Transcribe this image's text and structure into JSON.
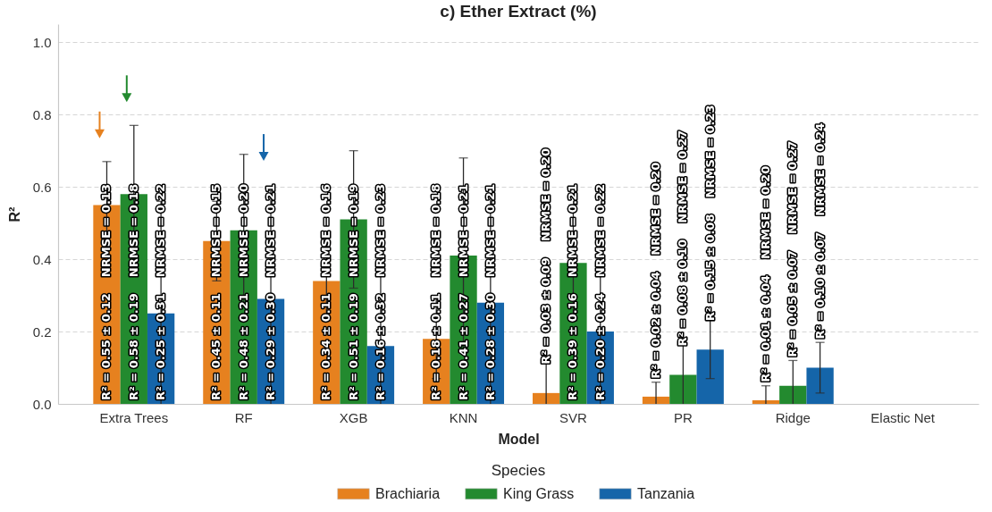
{
  "chart_data": {
    "type": "bar",
    "title": "c) Ether Extract (%)",
    "xlabel": "Model",
    "ylabel": "R²",
    "legend_title": "Species",
    "categories": [
      "Extra Trees",
      "RF",
      "XGB",
      "KNN",
      "SVR",
      "PR",
      "Ridge",
      "Elastic Net"
    ],
    "series": [
      {
        "name": "Brachiaria",
        "color": "#e6811f",
        "values": [
          0.55,
          0.45,
          0.34,
          0.18,
          0.03,
          0.02,
          0.01,
          0
        ],
        "errors": [
          0.12,
          0.11,
          0.11,
          0.11,
          [
            0,
            0.12
          ],
          [
            0,
            0.06
          ],
          [
            0,
            0.05
          ],
          null
        ],
        "value_labels": [
          "R² = 0.55 ± 0.12    NRMSE = 0.13",
          "R² = 0.45 ± 0.11    NRMSE = 0.15",
          "R² = 0.34 ± 0.11    NRMSE = 0.16",
          "R² = 0.18 ± 0.11    NRMSE = 0.18",
          "R² = 0.03 ± 0.09    NRMSE = 0.20",
          "R² = 0.02 ± 0.04    NRMSE = 0.20",
          "R² = 0.01 ± 0.04    NRMSE = 0.20",
          null
        ]
      },
      {
        "name": "King Grass",
        "color": "#238a2f",
        "values": [
          0.58,
          0.48,
          0.51,
          0.41,
          0.39,
          0.08,
          0.05,
          0
        ],
        "errors": [
          0.19,
          0.21,
          0.19,
          0.27,
          0.16,
          [
            0,
            0.18
          ],
          [
            0,
            0.12
          ],
          null
        ],
        "value_labels": [
          "R² = 0.58 ± 0.19    NRMSE = 0.18",
          "R² = 0.48 ± 0.21    NRMSE = 0.20",
          "R² = 0.51 ± 0.19    NRMSE = 0.19",
          "R² = 0.41 ± 0.27    NRMSE = 0.21",
          "R² = 0.39 ± 0.16    NRMSE = 0.21",
          "R² = 0.08 ± 0.10    NRMSE = 0.27",
          "R² = 0.05 ± 0.07    NRMSE = 0.27",
          null
        ]
      },
      {
        "name": "Tanzania",
        "color": "#1565a9",
        "values": [
          0.25,
          0.29,
          0.16,
          0.28,
          0.2,
          0.15,
          0.1,
          0
        ],
        "errors": [
          [
            0,
            0.56
          ],
          [
            0,
            0.59
          ],
          [
            0,
            0.48
          ],
          [
            0,
            0.58
          ],
          [
            0,
            0.44
          ],
          0.08,
          0.07,
          null
        ],
        "value_labels": [
          "R² = 0.25 ± 0.31    NRMSE = 0.22",
          "R² = 0.29 ± 0.30    NRMSE = 0.21",
          "R² = 0.16 ± 0.32    NRMSE = 0.23",
          "R² = 0.28 ± 0.30    NRMSE = 0.21",
          "R² = 0.20 ± 0.24    NRMSE = 0.22",
          "R² = 0.15 ± 0.08    NRMSE = 0.23",
          "R² = 0.10 ± 0.07    NRMSE = 0.24",
          null
        ]
      }
    ],
    "ylim": [
      0,
      1.05
    ],
    "yticks": [
      {
        "value": 0,
        "label": "0.0"
      },
      0.2,
      0.4,
      0.6,
      0.8,
      {
        "value": 1,
        "label": "1.0"
      }
    ],
    "grid": "y",
    "legend": "bottom"
  }
}
